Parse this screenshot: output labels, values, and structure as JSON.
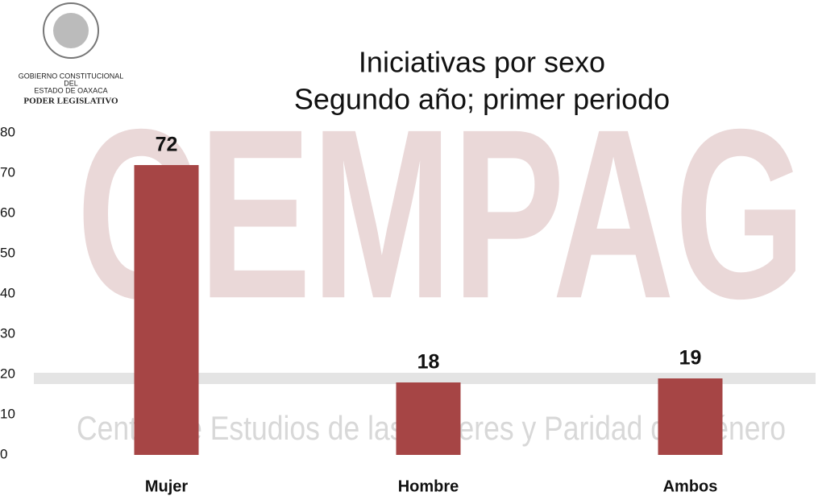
{
  "logo": {
    "lines": [
      "GOBIERNO CONSTITUCIONAL",
      "DEL",
      "ESTADO DE OAXACA",
      "PODER LEGISLATIVO"
    ]
  },
  "watermark": {
    "mark": "CEMPAG",
    "text": "Centro de Estudios de las Mujeres y Paridad de Género"
  },
  "chart_data": {
    "type": "bar",
    "title": [
      "Iniciativas por sexo",
      "Segundo año; primer periodo"
    ],
    "categories": [
      "Mujer",
      "Hombre",
      "Ambos"
    ],
    "values": [
      72,
      18,
      19
    ],
    "color": "#a64545",
    "ylim": [
      0,
      80
    ],
    "yticks": [
      0,
      10,
      20,
      30,
      40,
      50,
      60,
      70,
      80
    ],
    "grid": false
  }
}
